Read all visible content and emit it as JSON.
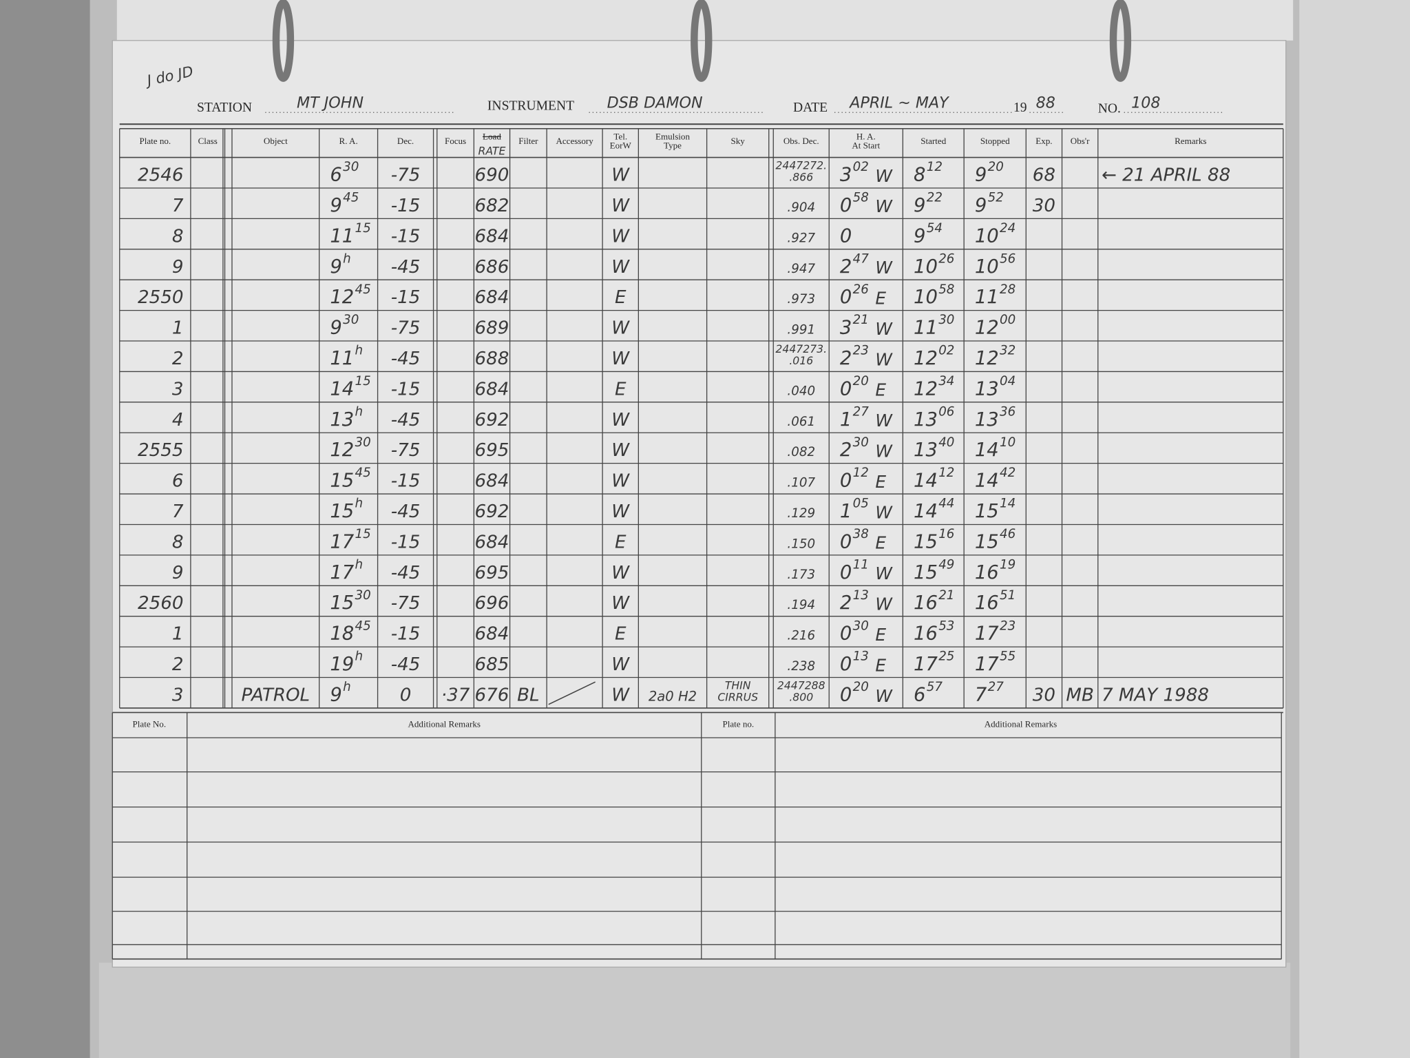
{
  "header": {
    "corner": "J do JD",
    "station_label": "STATION",
    "station": "MT JOHN",
    "instrument_label": "INSTRUMENT",
    "instrument": "DSB DAMON",
    "date_label": "DATE",
    "date": "APRIL ~ MAY",
    "year_label": "19",
    "year": "88",
    "no_label": "NO.",
    "no": "108"
  },
  "table": {
    "columns": [
      [
        "Plate no."
      ],
      [
        "Class"
      ],
      [
        "Object"
      ],
      [
        "R. A."
      ],
      [
        "Dec."
      ],
      [
        "Focus"
      ],
      [
        "Load",
        "RATE"
      ],
      [
        "Filter"
      ],
      [
        "Accessory"
      ],
      [
        "Tel.",
        "EorW"
      ],
      [
        "Emulsion",
        "Type"
      ],
      [
        "Sky"
      ],
      [
        "Obs. Dec."
      ],
      [
        "H. A.",
        "At Start"
      ],
      [
        "Started"
      ],
      [
        "Stopped"
      ],
      [
        "Exp."
      ],
      [
        "Obs'r"
      ],
      [
        "Remarks"
      ]
    ],
    "rows": [
      {
        "plate": "2546",
        "ra": [
          "6",
          "30"
        ],
        "dec": "-75",
        "load": "690",
        "tel": "W",
        "obs_dec": [
          "2447272.",
          ".866"
        ],
        "ha": [
          "3",
          "02",
          "W"
        ],
        "started": [
          "8",
          "12"
        ],
        "stopped": [
          "9",
          "20"
        ],
        "exp": "68",
        "remarks": "← 21 APRIL 88"
      },
      {
        "plate": "7",
        "ra": [
          "9",
          "45"
        ],
        "dec": "-15",
        "load": "682",
        "tel": "W",
        "obs_dec": [
          ".904"
        ],
        "ha": [
          "0",
          "58",
          "W"
        ],
        "started": [
          "9",
          "22"
        ],
        "stopped": [
          "9",
          "52"
        ],
        "exp": "30"
      },
      {
        "plate": "8",
        "ra": [
          "11",
          "15"
        ],
        "dec": "-15",
        "load": "684",
        "tel": "W",
        "obs_dec": [
          ".927"
        ],
        "ha": [
          "0"
        ],
        "started": [
          "9",
          "54"
        ],
        "stopped": [
          "10",
          "24"
        ]
      },
      {
        "plate": "9",
        "ra": [
          "9",
          "h"
        ],
        "dec": "-45",
        "load": "686",
        "tel": "W",
        "obs_dec": [
          ".947"
        ],
        "ha": [
          "2",
          "47",
          "W"
        ],
        "started": [
          "10",
          "26"
        ],
        "stopped": [
          "10",
          "56"
        ]
      },
      {
        "plate": "2550",
        "ra": [
          "12",
          "45"
        ],
        "dec": "-15",
        "load": "684",
        "tel": "E",
        "obs_dec": [
          ".973"
        ],
        "ha": [
          "0",
          "26",
          "E"
        ],
        "started": [
          "10",
          "58"
        ],
        "stopped": [
          "11",
          "28"
        ]
      },
      {
        "plate": "1",
        "ra": [
          "9",
          "30"
        ],
        "dec": "-75",
        "load": "689",
        "tel": "W",
        "obs_dec": [
          ".991"
        ],
        "ha": [
          "3",
          "21",
          "W"
        ],
        "started": [
          "11",
          "30"
        ],
        "stopped": [
          "12",
          "00"
        ]
      },
      {
        "plate": "2",
        "ra": [
          "11",
          "h"
        ],
        "dec": "-45",
        "load": "688",
        "tel": "W",
        "obs_dec": [
          "2447273.",
          ".016"
        ],
        "ha": [
          "2",
          "23",
          "W"
        ],
        "started": [
          "12",
          "02"
        ],
        "stopped": [
          "12",
          "32"
        ]
      },
      {
        "plate": "3",
        "ra": [
          "14",
          "15"
        ],
        "dec": "-15",
        "load": "684",
        "tel": "E",
        "obs_dec": [
          ".040"
        ],
        "ha": [
          "0",
          "20",
          "E"
        ],
        "started": [
          "12",
          "34"
        ],
        "stopped": [
          "13",
          "04"
        ]
      },
      {
        "plate": "4",
        "ra": [
          "13",
          "h"
        ],
        "dec": "-45",
        "load": "692",
        "tel": "W",
        "obs_dec": [
          ".061"
        ],
        "ha": [
          "1",
          "27",
          "W"
        ],
        "started": [
          "13",
          "06"
        ],
        "stopped": [
          "13",
          "36"
        ]
      },
      {
        "plate": "2555",
        "ra": [
          "12",
          "30"
        ],
        "dec": "-75",
        "load": "695",
        "tel": "W",
        "obs_dec": [
          ".082"
        ],
        "ha": [
          "2",
          "30",
          "W"
        ],
        "started": [
          "13",
          "40"
        ],
        "stopped": [
          "14",
          "10"
        ]
      },
      {
        "plate": "6",
        "ra": [
          "15",
          "45"
        ],
        "dec": "-15",
        "load": "684",
        "tel": "W",
        "obs_dec": [
          ".107"
        ],
        "ha": [
          "0",
          "12",
          "E"
        ],
        "started": [
          "14",
          "12"
        ],
        "stopped": [
          "14",
          "42"
        ]
      },
      {
        "plate": "7",
        "ra": [
          "15",
          "h"
        ],
        "dec": "-45",
        "load": "692",
        "tel": "W",
        "obs_dec": [
          ".129"
        ],
        "ha": [
          "1",
          "05",
          "W"
        ],
        "started": [
          "14",
          "44"
        ],
        "stopped": [
          "15",
          "14"
        ]
      },
      {
        "plate": "8",
        "ra": [
          "17",
          "15"
        ],
        "dec": "-15",
        "load": "684",
        "tel": "E",
        "obs_dec": [
          ".150"
        ],
        "ha": [
          "0",
          "38",
          "E"
        ],
        "started": [
          "15",
          "16"
        ],
        "stopped": [
          "15",
          "46"
        ]
      },
      {
        "plate": "9",
        "ra": [
          "17",
          "h"
        ],
        "dec": "-45",
        "load": "695",
        "tel": "W",
        "obs_dec": [
          ".173"
        ],
        "ha": [
          "0",
          "11",
          "W"
        ],
        "started": [
          "15",
          "49"
        ],
        "stopped": [
          "16",
          "19"
        ]
      },
      {
        "plate": "2560",
        "ra": [
          "15",
          "30"
        ],
        "dec": "-75",
        "load": "696",
        "tel": "W",
        "obs_dec": [
          ".194"
        ],
        "ha": [
          "2",
          "13",
          "W"
        ],
        "started": [
          "16",
          "21"
        ],
        "stopped": [
          "16",
          "51"
        ]
      },
      {
        "plate": "1",
        "ra": [
          "18",
          "45"
        ],
        "dec": "-15",
        "load": "684",
        "tel": "E",
        "obs_dec": [
          ".216"
        ],
        "ha": [
          "0",
          "30",
          "E"
        ],
        "started": [
          "16",
          "53"
        ],
        "stopped": [
          "17",
          "23"
        ]
      },
      {
        "plate": "2",
        "ra": [
          "19",
          "h"
        ],
        "dec": "-45",
        "load": "685",
        "tel": "W",
        "obs_dec": [
          ".238"
        ],
        "ha": [
          "0",
          "13",
          "E"
        ],
        "started": [
          "17",
          "25"
        ],
        "stopped": [
          "17",
          "55"
        ]
      },
      {
        "plate": "3",
        "object": "PATROL",
        "ra": [
          "9",
          "h"
        ],
        "dec": "0",
        "focus": "·37",
        "load": "676",
        "filter": "BL",
        "tel": "W",
        "emulsion": "2a0 H2",
        "sky": [
          "THIN",
          "CIRRUS"
        ],
        "obs_dec": [
          "2447288",
          ".800"
        ],
        "ha": [
          "0",
          "20",
          "W"
        ],
        "started": [
          "6",
          "57"
        ],
        "stopped": [
          "7",
          "27"
        ],
        "exp": "30",
        "obsr": "MB",
        "remarks": "7 MAY 1988"
      }
    ]
  },
  "additional": {
    "plate_label_left": "Plate No.",
    "remarks_label_left": "Additional Remarks",
    "plate_label_right": "Plate no.",
    "remarks_label_right": "Additional Remarks"
  }
}
